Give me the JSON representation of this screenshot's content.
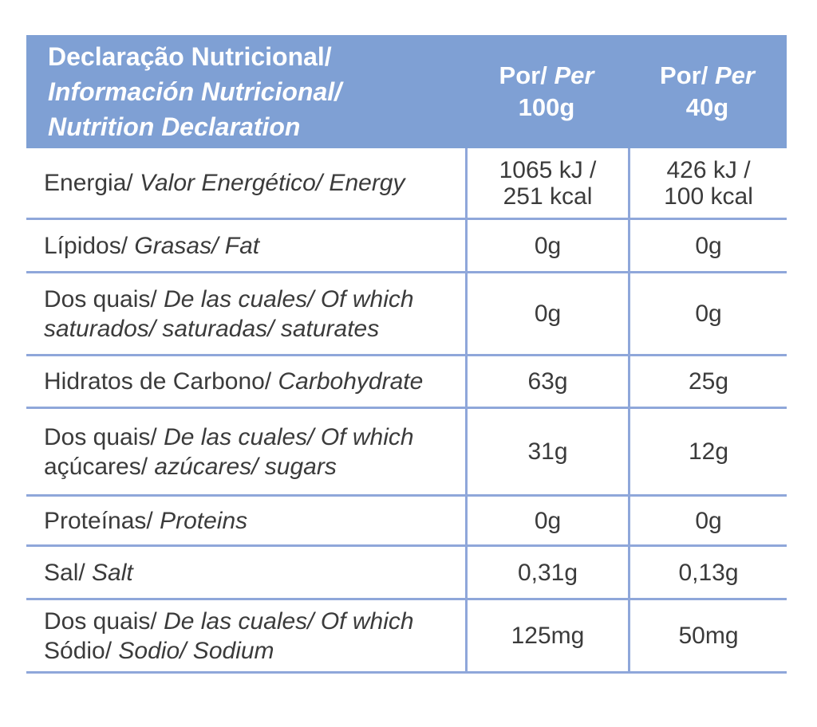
{
  "colors": {
    "header_bg": "#7fa0d4",
    "grid_line": "#8fa7da",
    "text": "#3b3b3b",
    "header_text": "#ffffff"
  },
  "header": {
    "title_l1": "Declaração Nutricional/",
    "title_l2": "Información Nutricional/",
    "title_l3": "Nutrition Declaration",
    "col_per100": {
      "l1_regular": "Por/",
      "l1_italic": " Per",
      "l2": "100g"
    },
    "col_per40": {
      "l1_regular": "Por/",
      "l1_italic": " Per",
      "l2": "40g"
    }
  },
  "rows": [
    {
      "l1_regular": "Energia/",
      "l1_italic": " Valor Energético/ Energy",
      "l2_regular": "",
      "l2_italic": "",
      "per100g": "1065 kJ /\n251 kcal",
      "per40g": "426 kJ /\n100 kcal"
    },
    {
      "l1_regular": "Lípidos/",
      "l1_italic": " Grasas/ Fat",
      "l2_regular": "",
      "l2_italic": "",
      "per100g": "0g",
      "per40g": "0g"
    },
    {
      "l1_regular": "Dos quais/",
      "l1_italic": " De las cuales/ Of which",
      "l2_regular": "",
      "l2_italic": "saturados/ saturadas/ saturates",
      "per100g": "0g",
      "per40g": "0g"
    },
    {
      "l1_regular": "Hidratos de Carbono/",
      "l1_italic": " Carbohydrate",
      "l2_regular": "",
      "l2_italic": "",
      "per100g": "63g",
      "per40g": "25g"
    },
    {
      "l1_regular": "Dos quais/",
      "l1_italic": " De las cuales/ Of which",
      "l2_regular": "açúcares/",
      "l2_italic": " azúcares/ sugars",
      "per100g": "31g",
      "per40g": "12g"
    },
    {
      "l1_regular": "Proteínas/",
      "l1_italic": " Proteins",
      "l2_regular": "",
      "l2_italic": "",
      "per100g": "0g",
      "per40g": "0g"
    },
    {
      "l1_regular": "Sal/",
      "l1_italic": " Salt",
      "l2_regular": "",
      "l2_italic": "",
      "per100g": "0,31g",
      "per40g": "0,13g"
    },
    {
      "l1_regular": "Dos quais/",
      "l1_italic": " De las cuales/ Of which",
      "l2_regular": "Sódio/",
      "l2_italic": " Sodio/ Sodium",
      "per100g": "125mg",
      "per40g": "50mg"
    }
  ]
}
